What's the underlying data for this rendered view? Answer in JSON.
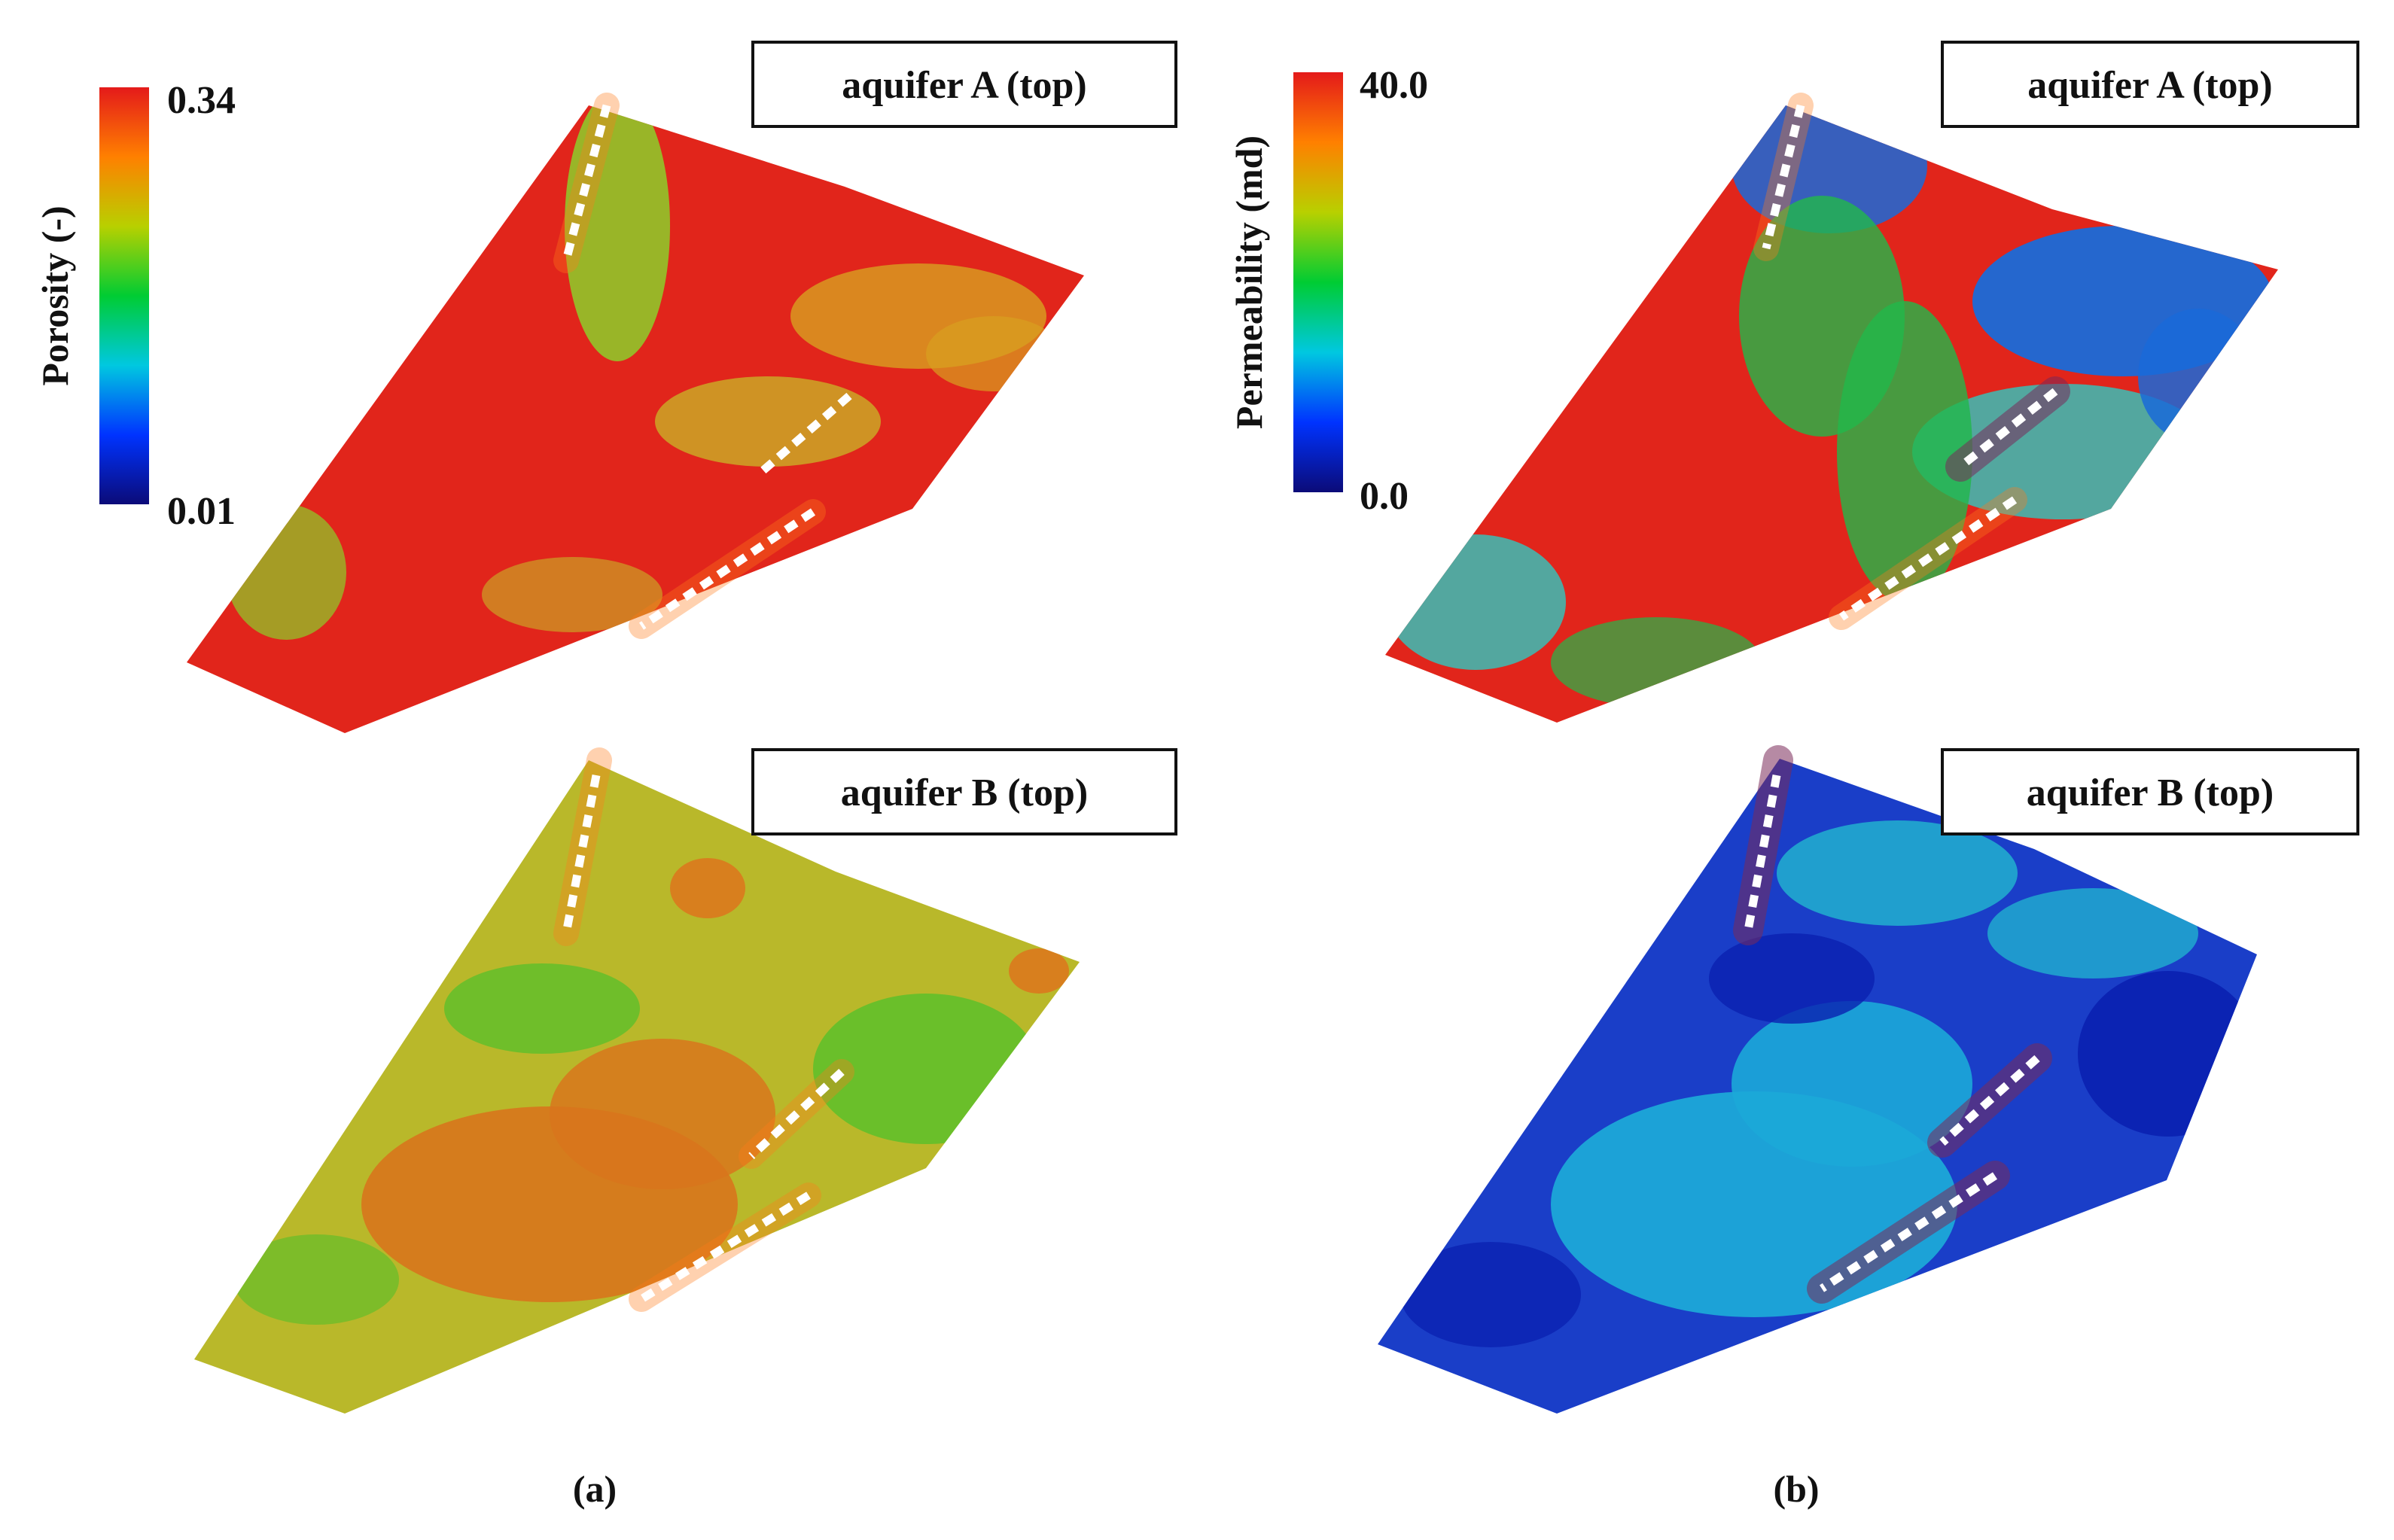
{
  "panels": [
    {
      "id": "a",
      "label": "(a)",
      "colorbar": {
        "title": "Porosity (-)",
        "max_label": "0.34",
        "min_label": "0.01",
        "stops": [
          "#0b0b78",
          "#0033ff",
          "#00c8e0",
          "#00cc33",
          "#b8d000",
          "#ff8000",
          "#e41a1a"
        ]
      },
      "maps": [
        {
          "title": "aquifer A (top)",
          "base_color": "#e1251b",
          "patch_colors": [
            "#d8a020",
            "#8ccf2a",
            "#c8b828"
          ]
        },
        {
          "title": "aquifer B (top)",
          "base_color": "#b9b82a",
          "patch_colors": [
            "#d8751c",
            "#5cbf2a",
            "#e0701c"
          ]
        }
      ]
    },
    {
      "id": "b",
      "label": "(b)",
      "colorbar": {
        "title": "Permeability (md)",
        "max_label": "40.0",
        "min_label": "0.0",
        "stops": [
          "#0b0b78",
          "#0033ff",
          "#00c8e0",
          "#00cc33",
          "#b8d000",
          "#ff8000",
          "#e41a1a"
        ]
      },
      "maps": [
        {
          "title": "aquifer A (top)",
          "base_color": "#e1251b",
          "patch_colors": [
            "#22b84a",
            "#1a6ad8",
            "#30c8c0"
          ]
        },
        {
          "title": "aquifer B (top)",
          "base_color": "#1a3ec8",
          "patch_colors": [
            "#1ca8d8",
            "#0a20b0",
            "#22b8d0"
          ]
        }
      ]
    }
  ]
}
